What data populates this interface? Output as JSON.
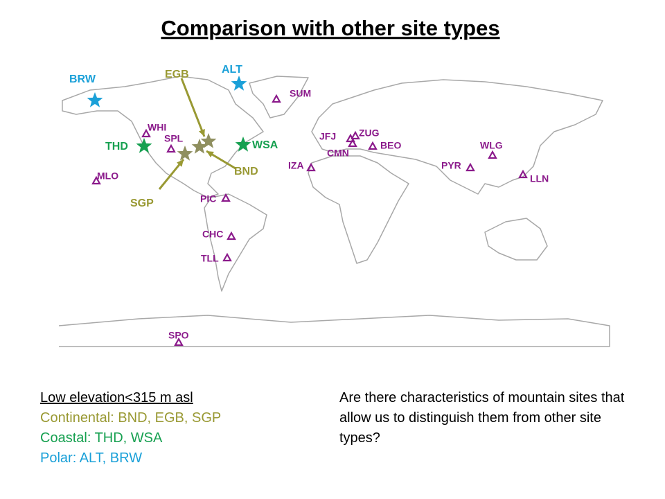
{
  "title": "Comparison with other site types",
  "colors": {
    "mountain": "#8b1a8b",
    "continental": "#999933",
    "continental_star": "#8f8f5f",
    "coastal": "#16a050",
    "polar": "#1aa0d8"
  },
  "mountain_sites": [
    "SUM",
    "WHI",
    "SPL",
    "MLO",
    "JFJ",
    "ZUG",
    "CMN",
    "BEO",
    "IZA",
    "PIC",
    "CHC",
    "TLL",
    "SPO",
    "WLG",
    "PYR",
    "LLN"
  ],
  "continental_sites": [
    "EGB",
    "BND",
    "SGP"
  ],
  "coastal_sites": [
    "THD",
    "WSA"
  ],
  "polar_sites": [
    "BRW",
    "ALT"
  ],
  "legend": {
    "heading": "Low elevation<315 m asl",
    "continental": "Continental: BND, EGB, SGP",
    "coastal": "Coastal: THD, WSA",
    "polar": "Polar: ALT, BRW"
  },
  "question": "Are there characteristics of mountain sites that allow us to distinguish them from other site types?"
}
